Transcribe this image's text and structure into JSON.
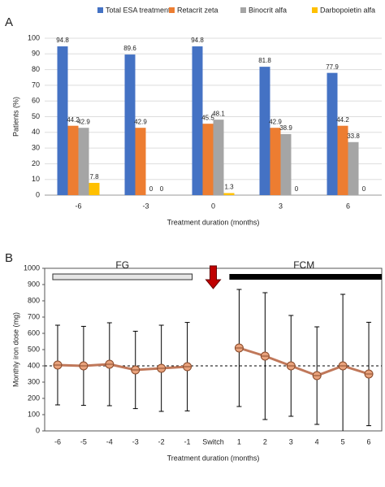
{
  "chart_data": [
    {
      "type": "bar",
      "panel_label": "A",
      "ylabel": "Patients (%)",
      "xlabel": "Treatment duration (months)",
      "categories": [
        "-6",
        "-3",
        "0",
        "3",
        "6"
      ],
      "series": [
        {
          "name": "Total ESA treatment",
          "color": "#4472c4",
          "values": [
            94.8,
            89.6,
            94.8,
            81.8,
            77.9
          ]
        },
        {
          "name": "Retacrit zeta",
          "color": "#ed7d31",
          "values": [
            44.2,
            42.9,
            45.5,
            42.9,
            44.2
          ]
        },
        {
          "name": "Binocrit alfa",
          "color": "#a5a5a5",
          "values": [
            42.9,
            0,
            48.1,
            38.9,
            33.8
          ]
        },
        {
          "name": "Darbopoietin alfa",
          "color": "#ffc000",
          "values": [
            7.8,
            0,
            1.3,
            0,
            0
          ]
        }
      ],
      "ylim": [
        0,
        100
      ],
      "yticks": [
        0,
        10,
        20,
        30,
        40,
        50,
        60,
        70,
        80,
        90,
        100
      ],
      "grid": true,
      "legend": "top"
    },
    {
      "type": "line",
      "panel_label": "B",
      "ylabel": "Monthly iron dose (mg)",
      "xlabel": "Treatment duration (months)",
      "categories": [
        "-6",
        "-5",
        "-4",
        "-3",
        "-2",
        "-1",
        "Switch",
        "1",
        "2",
        "3",
        "4",
        "5",
        "6"
      ],
      "series": [
        {
          "color": "#c0785a",
          "values": [
            405,
            400,
            410,
            375,
            385,
            395,
            null,
            510,
            460,
            400,
            340,
            400,
            350
          ],
          "errors": [
            245,
            243,
            255,
            238,
            265,
            272,
            null,
            360,
            390,
            310,
            300,
            440,
            318
          ]
        }
      ],
      "reference_line": 400,
      "annotations": [
        "FG",
        "FCM"
      ],
      "ylim": [
        0,
        1000
      ],
      "yticks": [
        0,
        100,
        200,
        300,
        400,
        500,
        600,
        700,
        800,
        900,
        1000
      ],
      "grid": false
    }
  ]
}
